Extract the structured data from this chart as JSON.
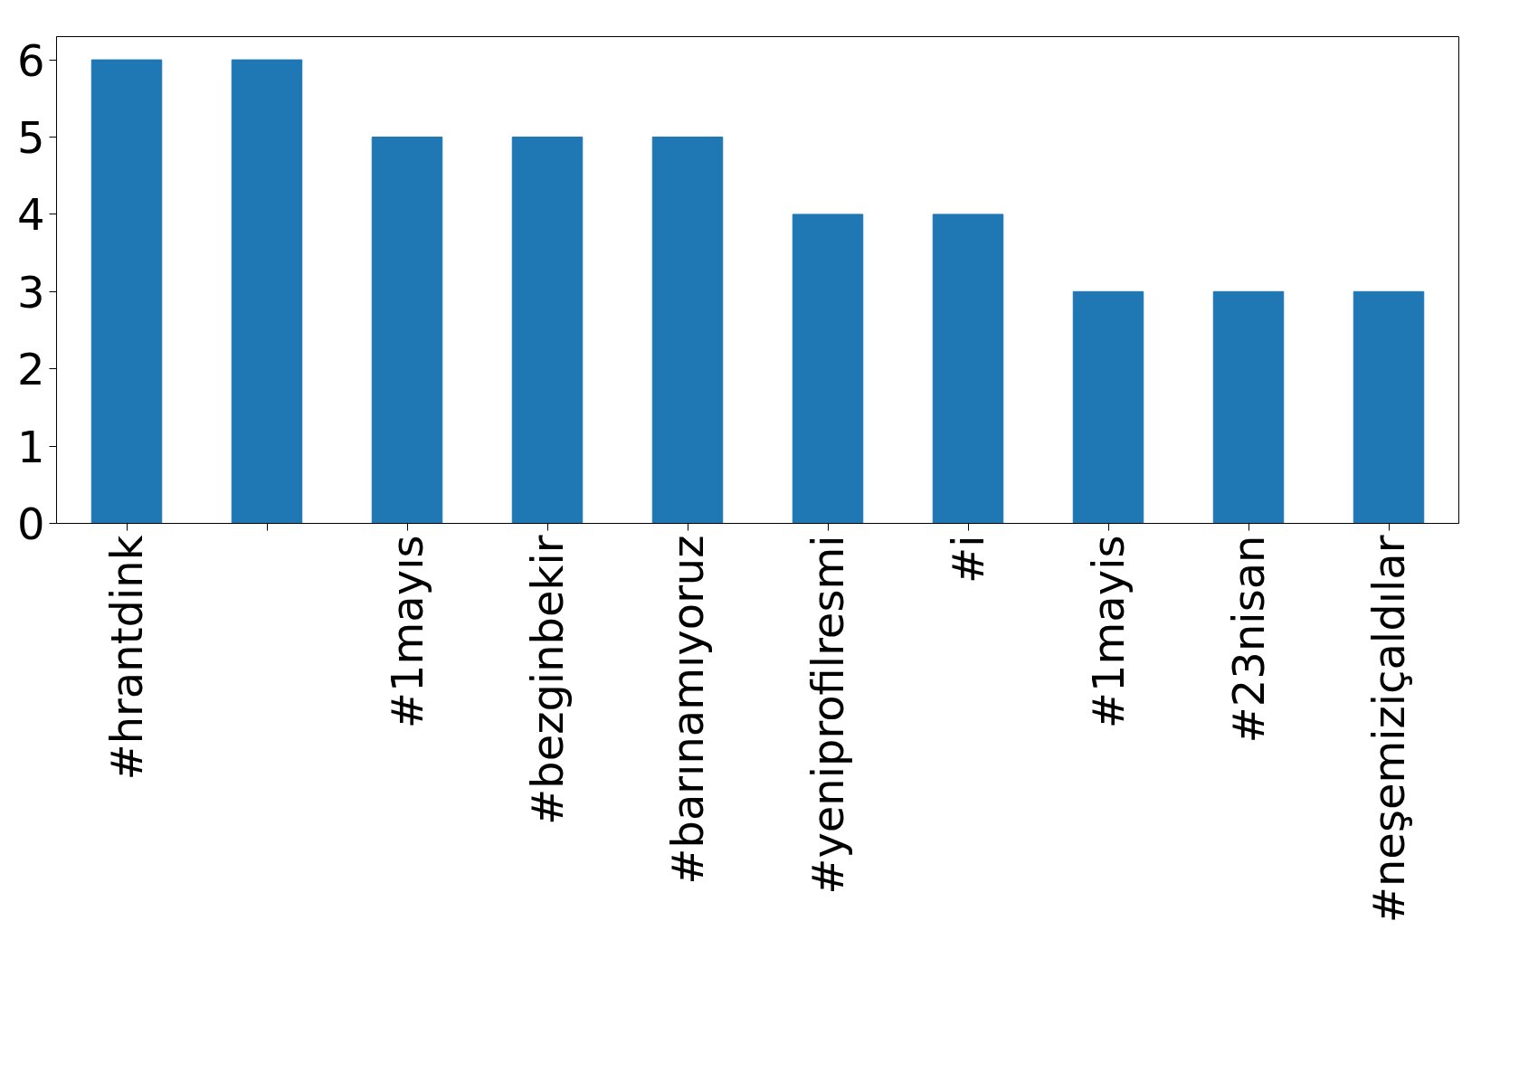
{
  "chart_data": {
    "type": "bar",
    "categories": [
      "#hrantdink",
      null,
      "#1mayıs",
      "#bezginbekir",
      "#barınamıyoruz",
      "#yeniprofilresmi",
      "#i",
      "#1mayis",
      "#23nisan",
      "#neşemiziçaldılar"
    ],
    "values": [
      6,
      6,
      5,
      5,
      5,
      4,
      4,
      3,
      3,
      3
    ],
    "color": "#1f77b4",
    "ylim": [
      0,
      6.3
    ],
    "yticks": [
      0,
      1,
      2,
      3,
      4,
      5,
      6
    ],
    "grid": false
  }
}
